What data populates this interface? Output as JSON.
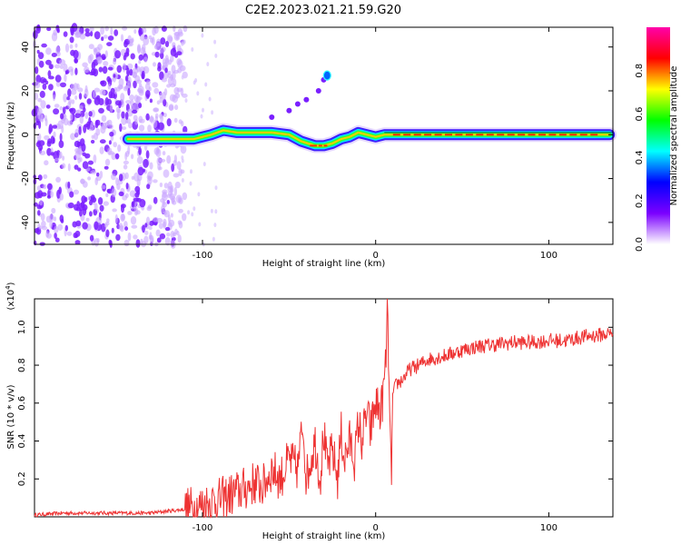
{
  "title": "C2E2.2023.021.21.59.G20",
  "chart_data": [
    {
      "type": "heatmap",
      "xlabel": "Height of straight line (km)",
      "ylabel": "Frequency (Hz)",
      "xlim": [
        -197,
        137
      ],
      "ylim": [
        -50,
        49
      ],
      "xticks": [
        -100,
        0,
        100
      ],
      "yticks": [
        -40,
        -20,
        0,
        20,
        40
      ],
      "colorbar": {
        "label": "Normalized spectral amplitude",
        "range": [
          0,
          1
        ],
        "ticks": [
          0.0,
          0.2,
          0.4,
          0.6,
          0.8
        ],
        "colors": [
          "#ffffff",
          "#7b00ff",
          "#0000ff",
          "#00ffff",
          "#00ff00",
          "#ffff00",
          "#ff0000",
          "#ff00aa"
        ]
      },
      "ridge": {
        "x": [
          -143,
          -120,
          -105,
          -95,
          -88,
          -80,
          -70,
          -60,
          -50,
          -43,
          -35,
          -30,
          -25,
          -20,
          -15,
          -10,
          -5,
          0,
          5,
          10,
          30,
          60,
          90,
          120,
          135
        ],
        "y": [
          -2,
          -2,
          -2,
          0,
          2,
          1,
          1,
          1,
          0,
          -3,
          -5,
          -5,
          -4,
          -2,
          -1,
          1,
          0,
          -1,
          0,
          0,
          0,
          0,
          0,
          0,
          0
        ]
      },
      "scattered_region_x": [
        -197,
        -110
      ],
      "streak": {
        "x": [
          -60,
          -50,
          -45,
          -40,
          -33,
          -30,
          -28
        ],
        "y": [
          8,
          11,
          14,
          16,
          20,
          25,
          27
        ]
      }
    },
    {
      "type": "line",
      "xlabel": "Height of straight line (km)",
      "ylabel": "SNR (10 * v/v)",
      "multiplier": "(x10",
      "multiplier_exp": "4",
      "xlim": [
        -197,
        137
      ],
      "ylim": [
        0,
        1.15
      ],
      "xticks": [
        -100,
        0,
        100
      ],
      "yticks": [
        0.2,
        0.4,
        0.6,
        0.8,
        1.0
      ],
      "color": "#ee3333",
      "x": [
        -197,
        -180,
        -160,
        -140,
        -130,
        -120,
        -110,
        -100,
        -95,
        -90,
        -85,
        -80,
        -75,
        -70,
        -65,
        -60,
        -55,
        -50,
        -45,
        -42,
        -40,
        -35,
        -32,
        -30,
        -28,
        -25,
        -22,
        -20,
        -18,
        -15,
        -12,
        -10,
        -8,
        -5,
        -3,
        0,
        3,
        5,
        6,
        7,
        8,
        9,
        10,
        12,
        15,
        20,
        25,
        30,
        40,
        50,
        60,
        70,
        80,
        90,
        100,
        110,
        120,
        130,
        137
      ],
      "y": [
        0.01,
        0.02,
        0.02,
        0.02,
        0.02,
        0.03,
        0.04,
        0.06,
        0.08,
        0.09,
        0.11,
        0.13,
        0.15,
        0.18,
        0.16,
        0.25,
        0.2,
        0.3,
        0.25,
        0.5,
        0.2,
        0.4,
        0.2,
        0.45,
        0.25,
        0.35,
        0.2,
        0.45,
        0.3,
        0.4,
        0.3,
        0.5,
        0.4,
        0.55,
        0.45,
        0.6,
        0.55,
        0.7,
        0.85,
        1.13,
        0.5,
        0.2,
        0.65,
        0.7,
        0.72,
        0.78,
        0.8,
        0.83,
        0.85,
        0.88,
        0.9,
        0.91,
        0.92,
        0.92,
        0.93,
        0.93,
        0.95,
        0.96,
        0.97
      ]
    }
  ]
}
